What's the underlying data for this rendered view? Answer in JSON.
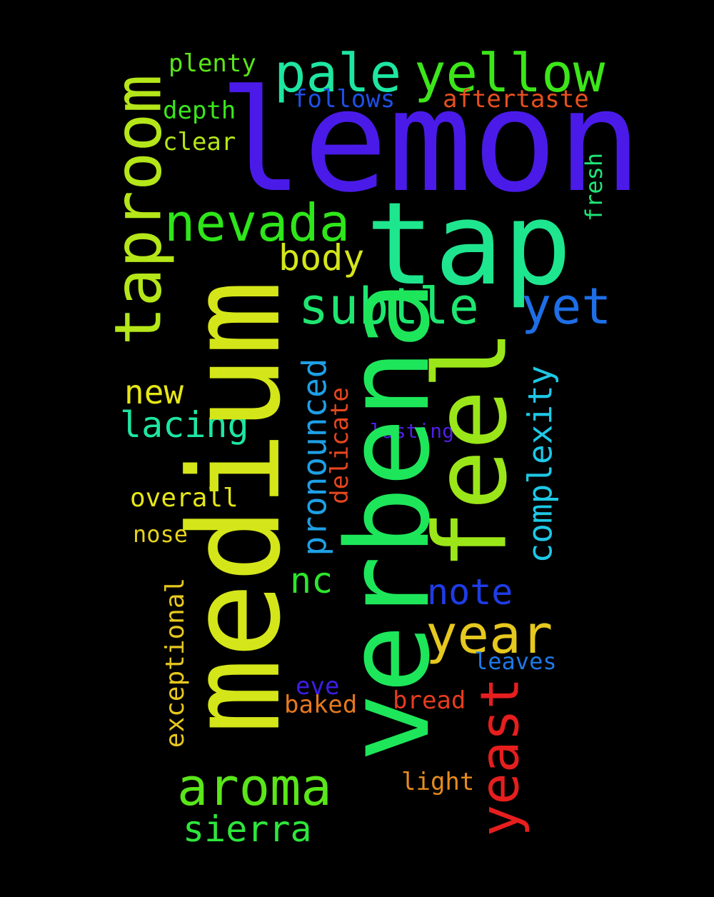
{
  "words": [
    {
      "id": "lemon",
      "text": "lemon",
      "color": "#4a1be8"
    },
    {
      "id": "tap",
      "text": "tap",
      "color": "#1ee68e"
    },
    {
      "id": "medium",
      "text": "medium",
      "color": "#d4e619"
    },
    {
      "id": "verbena",
      "text": "verbena",
      "color": "#1ee65a"
    },
    {
      "id": "feel",
      "text": "feel",
      "color": "#9be619"
    },
    {
      "id": "taproom",
      "text": "taproom",
      "color": "#b4e619"
    },
    {
      "id": "pale",
      "text": "pale",
      "color": "#1ee6a0"
    },
    {
      "id": "yellow",
      "text": "yellow",
      "color": "#3ce619"
    },
    {
      "id": "nevada",
      "text": "nevada",
      "color": "#2ee619"
    },
    {
      "id": "subtle",
      "text": "subtle",
      "color": "#1ee670"
    },
    {
      "id": "yet",
      "text": "yet",
      "color": "#1e6ee6"
    },
    {
      "id": "body",
      "text": "body",
      "color": "#d4e619"
    },
    {
      "id": "aroma",
      "text": "aroma",
      "color": "#5ae619"
    },
    {
      "id": "year",
      "text": "year",
      "color": "#e6c81e"
    },
    {
      "id": "yeast",
      "text": "yeast",
      "color": "#e61e1e"
    },
    {
      "id": "sierra",
      "text": "sierra",
      "color": "#2ee63c"
    },
    {
      "id": "note",
      "text": "note",
      "color": "#1e3ce6"
    },
    {
      "id": "complexity",
      "text": "complexity",
      "color": "#1ec8e6"
    },
    {
      "id": "pronounced",
      "text": "pronounced",
      "color": "#1ea0e6"
    },
    {
      "id": "nc",
      "text": "nc",
      "color": "#2ee62e"
    },
    {
      "id": "lacing",
      "text": "lacing",
      "color": "#1ee6a0"
    },
    {
      "id": "new",
      "text": "new",
      "color": "#e6e619"
    },
    {
      "id": "plenty",
      "text": "plenty",
      "color": "#5ae619"
    },
    {
      "id": "depth",
      "text": "depth",
      "color": "#3ce61e"
    },
    {
      "id": "clear",
      "text": "clear",
      "color": "#b4e619"
    },
    {
      "id": "follows",
      "text": "follows",
      "color": "#1e50e6"
    },
    {
      "id": "aftertaste",
      "text": "aftertaste",
      "color": "#e6501e"
    },
    {
      "id": "fresh",
      "text": "fresh",
      "color": "#1ee678"
    },
    {
      "id": "delicate",
      "text": "delicate",
      "color": "#e6461e"
    },
    {
      "id": "lasting",
      "text": "lasting",
      "color": "#501ee6"
    },
    {
      "id": "overall",
      "text": "overall",
      "color": "#e6e619"
    },
    {
      "id": "nose",
      "text": "nose",
      "color": "#e6d21e"
    },
    {
      "id": "exceptional",
      "text": "exceptional",
      "color": "#e6c81e"
    },
    {
      "id": "leaves",
      "text": "leaves",
      "color": "#1e78e6"
    },
    {
      "id": "eve",
      "text": "eve",
      "color": "#3c1ee6"
    },
    {
      "id": "baked",
      "text": "baked",
      "color": "#e6781e"
    },
    {
      "id": "bread",
      "text": "bread",
      "color": "#e63c1e"
    },
    {
      "id": "light",
      "text": "light",
      "color": "#e68c1e"
    }
  ]
}
